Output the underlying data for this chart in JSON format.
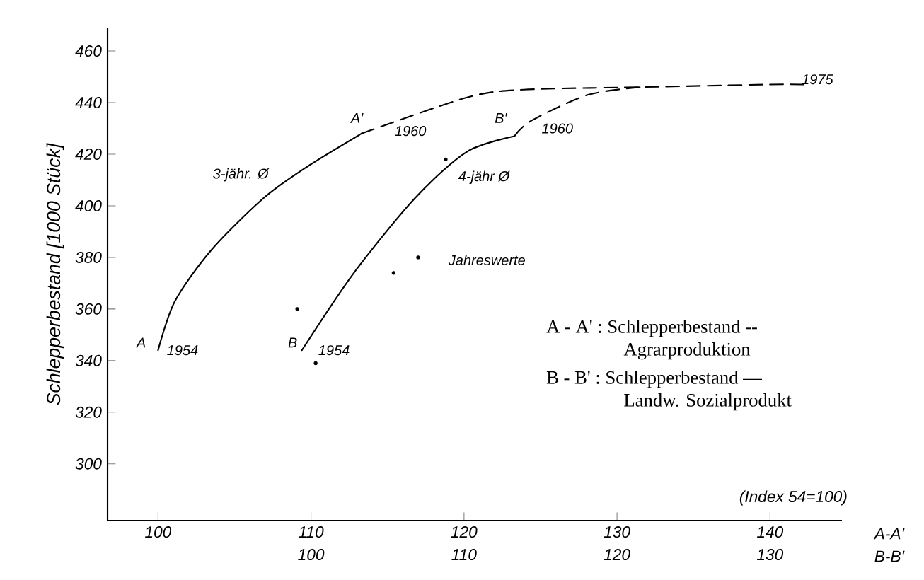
{
  "chart_data": {
    "type": "line",
    "ylabel": "Schlepperbestand  [1000 Stück]",
    "xlabel": "A-A'",
    "x2label": "B-B'",
    "xlim": [
      96.7,
      144.7
    ],
    "ylim": [
      278,
      468.8
    ],
    "x2lim": [
      86.7,
      134.7
    ],
    "xticks": [
      100,
      110,
      120,
      130,
      140
    ],
    "x2ticks": [
      100,
      110,
      120,
      130
    ],
    "yticks": [
      300,
      320,
      340,
      360,
      380,
      400,
      420,
      440,
      460
    ],
    "series": [
      {
        "color": "#000000",
        "line_style": "solid",
        "marker": "none",
        "x": [
          100,
          101.1,
          103.5,
          106.9,
          109.7,
          113.3
        ],
        "values": [
          344,
          363,
          383,
          403,
          415,
          428
        ]
      },
      {
        "color": "#000000",
        "line_style": "dashed",
        "marker": "none",
        "x": [
          113.3,
          120.2,
          123.9,
          131.6,
          140,
          142.2
        ],
        "values": [
          428,
          442,
          445,
          446,
          447,
          447
        ]
      },
      {
        "axis": "x2",
        "color": "#000000",
        "line_style": "solid",
        "marker": "none",
        "x": [
          99.4,
          102.8,
          106.8,
          110.2,
          113.3
        ],
        "values": [
          344,
          374,
          403,
          421,
          427
        ]
      },
      {
        "axis": "x2",
        "color": "#000000",
        "line_style": "dashed",
        "marker": "none",
        "x": [
          113.3,
          114.4,
          118.1,
          121.6
        ],
        "values": [
          427,
          433,
          443,
          446
        ]
      },
      {
        "type": "scatter",
        "axis": "x2",
        "color": "#000000",
        "marker": "circle",
        "x": [
          99.1,
          100.3,
          105.4,
          107,
          108.8
        ],
        "values": [
          360,
          339,
          374,
          380,
          418
        ]
      }
    ],
    "annotations": [
      "A",
      "1954",
      "A'",
      "1960",
      "3-jähr. Ø",
      "B",
      "1954",
      "B'",
      "1960",
      "4-jähr Ø",
      "Jahreswerte",
      "1975",
      "(Index 54=100)",
      "A - A' :  Schlepperbestand  --",
      "Agrarproduktion",
      "B - B' :  Schlepperbestand  —",
      "Landw.  Sozialprodukt"
    ]
  }
}
